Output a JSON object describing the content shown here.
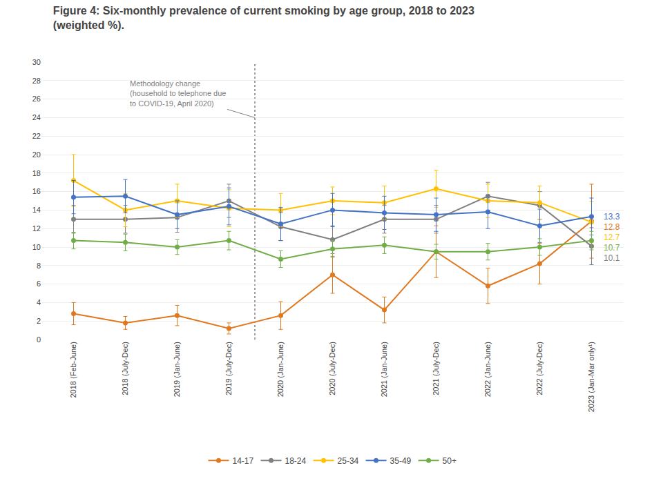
{
  "chart_data": {
    "type": "line",
    "title": "Figure 4: Six-monthly prevalence of current smoking by age group, 2018 to 2023\n(weighted %).",
    "categories": [
      "2018 (Feb-June)",
      "2018 (July-Dec)",
      "2019 (Jan-June)",
      "2019 (July-Dec)",
      "2020 (Jan-June)",
      "2020 (July-Dec)",
      "2021 (Jan-June)",
      "2021 (July-Dec)",
      "2022 (Jan-June)",
      "2022 (July-Dec)",
      "2023 (Jan-Mar only¹)"
    ],
    "series": [
      {
        "name": "14-17",
        "color": "#E07820",
        "values": [
          2.8,
          1.8,
          2.6,
          1.2,
          2.6,
          7.0,
          3.2,
          9.5,
          5.8,
          8.2,
          12.8
        ],
        "yerr_low": [
          1.2,
          0.7,
          1.1,
          0.6,
          1.5,
          2.0,
          1.4,
          2.8,
          1.9,
          2.2,
          4.0
        ],
        "yerr_high": [
          1.2,
          0.7,
          1.1,
          0.6,
          1.5,
          2.0,
          1.4,
          2.8,
          1.9,
          2.2,
          4.0
        ]
      },
      {
        "name": "18-24",
        "color": "#808080",
        "values": [
          13.0,
          13.0,
          13.2,
          15.0,
          12.2,
          10.8,
          13.0,
          13.0,
          15.5,
          14.5,
          10.1
        ],
        "yerr_low": [
          1.5,
          1.5,
          1.6,
          1.8,
          1.5,
          1.5,
          1.5,
          1.5,
          1.5,
          1.5,
          2.0
        ],
        "yerr_high": [
          1.5,
          1.5,
          1.6,
          1.8,
          1.5,
          1.5,
          1.5,
          1.5,
          1.5,
          1.5,
          2.0
        ]
      },
      {
        "name": "25-34",
        "color": "#FFC000",
        "values": [
          17.2,
          14.0,
          15.0,
          14.2,
          14.0,
          15.0,
          14.8,
          16.3,
          15.0,
          14.8,
          12.7
        ],
        "yerr_low": [
          2.8,
          1.8,
          1.8,
          2.0,
          1.8,
          1.5,
          1.8,
          2.0,
          1.8,
          1.8,
          2.2
        ],
        "yerr_high": [
          2.8,
          1.8,
          1.8,
          2.0,
          1.8,
          1.5,
          1.8,
          2.0,
          1.8,
          1.8,
          2.2
        ]
      },
      {
        "name": "35-49",
        "color": "#4472C4",
        "values": [
          15.4,
          15.5,
          13.5,
          14.4,
          12.5,
          14.0,
          13.7,
          13.5,
          13.8,
          12.3,
          13.3
        ],
        "yerr_low": [
          1.8,
          1.8,
          1.5,
          2.0,
          1.8,
          1.8,
          1.8,
          1.8,
          1.8,
          1.8,
          2.0
        ],
        "yerr_high": [
          1.8,
          1.8,
          1.5,
          2.0,
          1.8,
          1.8,
          1.8,
          1.8,
          1.8,
          1.8,
          2.0
        ]
      },
      {
        "name": "50+",
        "color": "#70AD47",
        "values": [
          10.7,
          10.5,
          10.0,
          10.7,
          8.7,
          9.8,
          10.2,
          9.5,
          9.5,
          10.0,
          10.7
        ],
        "yerr_low": [
          0.9,
          0.9,
          0.8,
          1.0,
          0.9,
          0.9,
          0.9,
          0.8,
          0.9,
          0.9,
          1.0
        ],
        "yerr_high": [
          0.9,
          0.9,
          0.8,
          1.0,
          0.9,
          0.9,
          0.9,
          0.8,
          0.9,
          0.9,
          1.0
        ]
      }
    ],
    "end_labels": [
      {
        "series": "35-49",
        "value": 13.3
      },
      {
        "series": "14-17",
        "value": 12.8
      },
      {
        "series": "25-34",
        "value": 12.7
      },
      {
        "series": "50+",
        "value": 10.7
      },
      {
        "series": "18-24",
        "value": 10.1
      }
    ],
    "vline_before": "2020 (Jan-June)",
    "annotation": "Methodology change\n(household to telephone due\nto COVID-19, April 2020)",
    "ylim": [
      0,
      30
    ],
    "yticks": [
      0,
      2,
      4,
      6,
      8,
      10,
      12,
      14,
      16,
      18,
      20,
      22,
      24,
      26,
      28,
      30
    ],
    "grid": true,
    "marker": "circle",
    "legend": "bottom"
  }
}
